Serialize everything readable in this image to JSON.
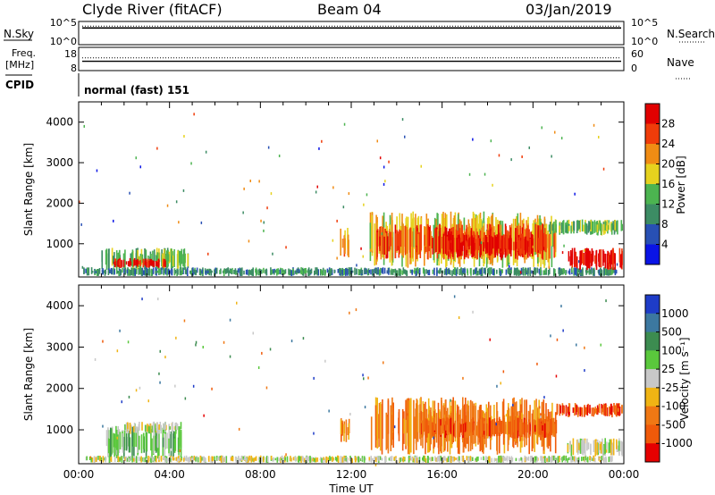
{
  "header": {
    "station": "Clyde River (fitACF)",
    "beam": "Beam 04",
    "date": "03/Jan/2019"
  },
  "status_panels": {
    "nsky_label": "N.Sky",
    "nsearch_label": "N.Search",
    "freq_label_1": "Freq.",
    "freq_label_2": "[MHz]",
    "nave_label": "Nave",
    "cpid_label": "CPID",
    "noise_left_ticks": [
      "10^5",
      "10^0"
    ],
    "noise_right_ticks": [
      "10^5",
      "10^0"
    ],
    "freq_left_ticks": [
      "18",
      "8"
    ],
    "freq_right_ticks": [
      "60",
      "0"
    ],
    "cpid_text": "normal (fast) 151",
    "noise_level": 0.72,
    "freq_level": 0.4,
    "nave_level": 0.55
  },
  "chart_data": [
    {
      "type": "heatmap",
      "quantity": "Power",
      "colorbar_label": "Power [dB]",
      "colorbar_ticks": [
        "28",
        "24",
        "20",
        "16",
        "12",
        "8",
        "4"
      ],
      "ylabel": "Slant Range [km]",
      "yticks": [
        "4000",
        "3000",
        "2000",
        "1000"
      ],
      "ylim": [
        180,
        4500
      ],
      "colors": [
        "#0a14e6",
        "#2850b4",
        "#3c8c64",
        "#4cb450",
        "#e6d21e",
        "#f08c14",
        "#f03c0a",
        "#e10000"
      ],
      "regions": [
        {
          "t0": 1.0,
          "t1": 4.8,
          "r0": 350,
          "r1": 900,
          "level": 3
        },
        {
          "t0": 1.5,
          "t1": 3.8,
          "r0": 400,
          "r1": 650,
          "level": 7
        },
        {
          "t0": 0.2,
          "t1": 23.8,
          "r0": 200,
          "r1": 420,
          "level": 2
        },
        {
          "t0": 11.5,
          "t1": 11.9,
          "r0": 600,
          "r1": 1400,
          "level": 5
        },
        {
          "t0": 12.8,
          "t1": 21.0,
          "r0": 400,
          "r1": 1800,
          "level": 4
        },
        {
          "t0": 13.0,
          "t1": 21.0,
          "r0": 600,
          "r1": 1500,
          "level": 6
        },
        {
          "t0": 16.0,
          "t1": 20.0,
          "r0": 650,
          "r1": 1250,
          "level": 7
        },
        {
          "t0": 20.5,
          "t1": 23.9,
          "r0": 1200,
          "r1": 1600,
          "level": 3
        },
        {
          "t0": 21.5,
          "t1": 23.9,
          "r0": 350,
          "r1": 900,
          "level": 7
        }
      ]
    },
    {
      "type": "heatmap",
      "quantity": "Velocity",
      "colorbar_label": "Velocity [m s⁻¹]",
      "colorbar_ticks": [
        "1000",
        "500",
        "100",
        "25",
        "-25",
        "-100",
        "-500",
        "-1000"
      ],
      "ylabel": "Slant Range [km]",
      "yticks": [
        "4000",
        "3000",
        "2000",
        "1000"
      ],
      "ylim": [
        180,
        4500
      ],
      "colors": [
        "#1e3cc8",
        "#3c78a0",
        "#3c8c50",
        "#5ac83c",
        "#c8c8c8",
        "#f0b414",
        "#f07814",
        "#f05a0a",
        "#e60000"
      ],
      "regions": [
        {
          "t0": 1.2,
          "t1": 4.5,
          "r0": 300,
          "r1": 1100,
          "level": 3
        },
        {
          "t0": 2.0,
          "t1": 4.5,
          "r0": 900,
          "r1": 1200,
          "level": 4
        },
        {
          "t0": 0.3,
          "t1": 23.5,
          "r0": 200,
          "r1": 380,
          "level": 4
        },
        {
          "t0": 11.5,
          "t1": 11.9,
          "r0": 700,
          "r1": 1300,
          "level": 6
        },
        {
          "t0": 12.8,
          "t1": 21.0,
          "r0": 400,
          "r1": 1800,
          "level": 6
        },
        {
          "t0": 15.0,
          "t1": 21.0,
          "r0": 800,
          "r1": 1300,
          "level": 7
        },
        {
          "t0": 21.0,
          "t1": 23.9,
          "r0": 1300,
          "r1": 1650,
          "level": 7
        },
        {
          "t0": 21.5,
          "t1": 23.9,
          "r0": 350,
          "r1": 800,
          "level": 4
        }
      ]
    }
  ],
  "time_axis": {
    "xlabel": "Time UT",
    "ticks": [
      "00:00",
      "04:00",
      "08:00",
      "12:00",
      "16:00",
      "20:00",
      "00:00"
    ],
    "xlim_hours": [
      0,
      24
    ]
  }
}
